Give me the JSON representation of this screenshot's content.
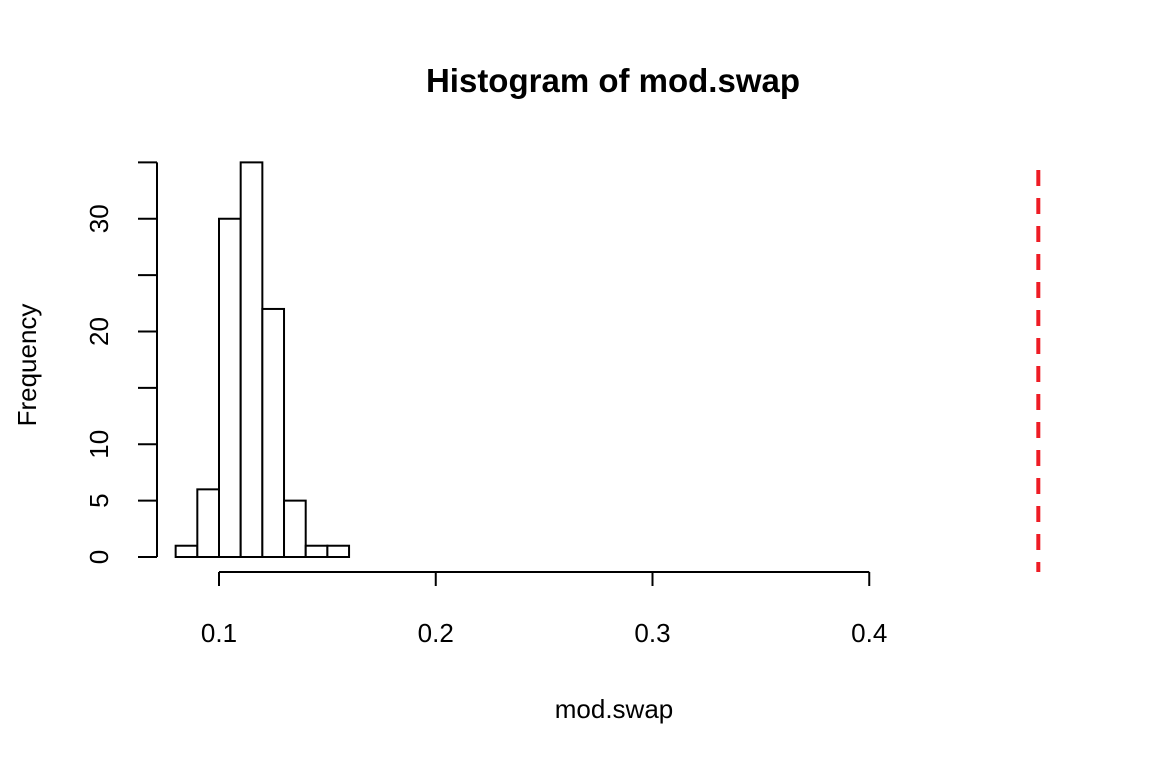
{
  "chart_data": {
    "type": "bar",
    "title": "Histogram of mod.swap",
    "xlabel": "mod.swap",
    "ylabel": "Frequency",
    "bins": [
      {
        "from": 0.08,
        "to": 0.09,
        "count": 1
      },
      {
        "from": 0.09,
        "to": 0.1,
        "count": 6
      },
      {
        "from": 0.1,
        "to": 0.11,
        "count": 30
      },
      {
        "from": 0.11,
        "to": 0.12,
        "count": 35
      },
      {
        "from": 0.12,
        "to": 0.13,
        "count": 22
      },
      {
        "from": 0.13,
        "to": 0.14,
        "count": 5
      },
      {
        "from": 0.14,
        "to": 0.15,
        "count": 1
      },
      {
        "from": 0.15,
        "to": 0.16,
        "count": 1
      }
    ],
    "x_ticks": [
      0.1,
      0.2,
      0.3,
      0.4
    ],
    "x_tick_labels": [
      "0.1",
      "0.2",
      "0.3",
      "0.4"
    ],
    "y_ticks": [
      0,
      5,
      10,
      15,
      20,
      25,
      30,
      35
    ],
    "y_tick_labels": [
      "0",
      "5",
      "10",
      "",
      "20",
      "",
      "30",
      ""
    ],
    "reference_line": {
      "x": 0.478,
      "color": "#ee1c25",
      "style": "dashed"
    },
    "grid": false
  }
}
